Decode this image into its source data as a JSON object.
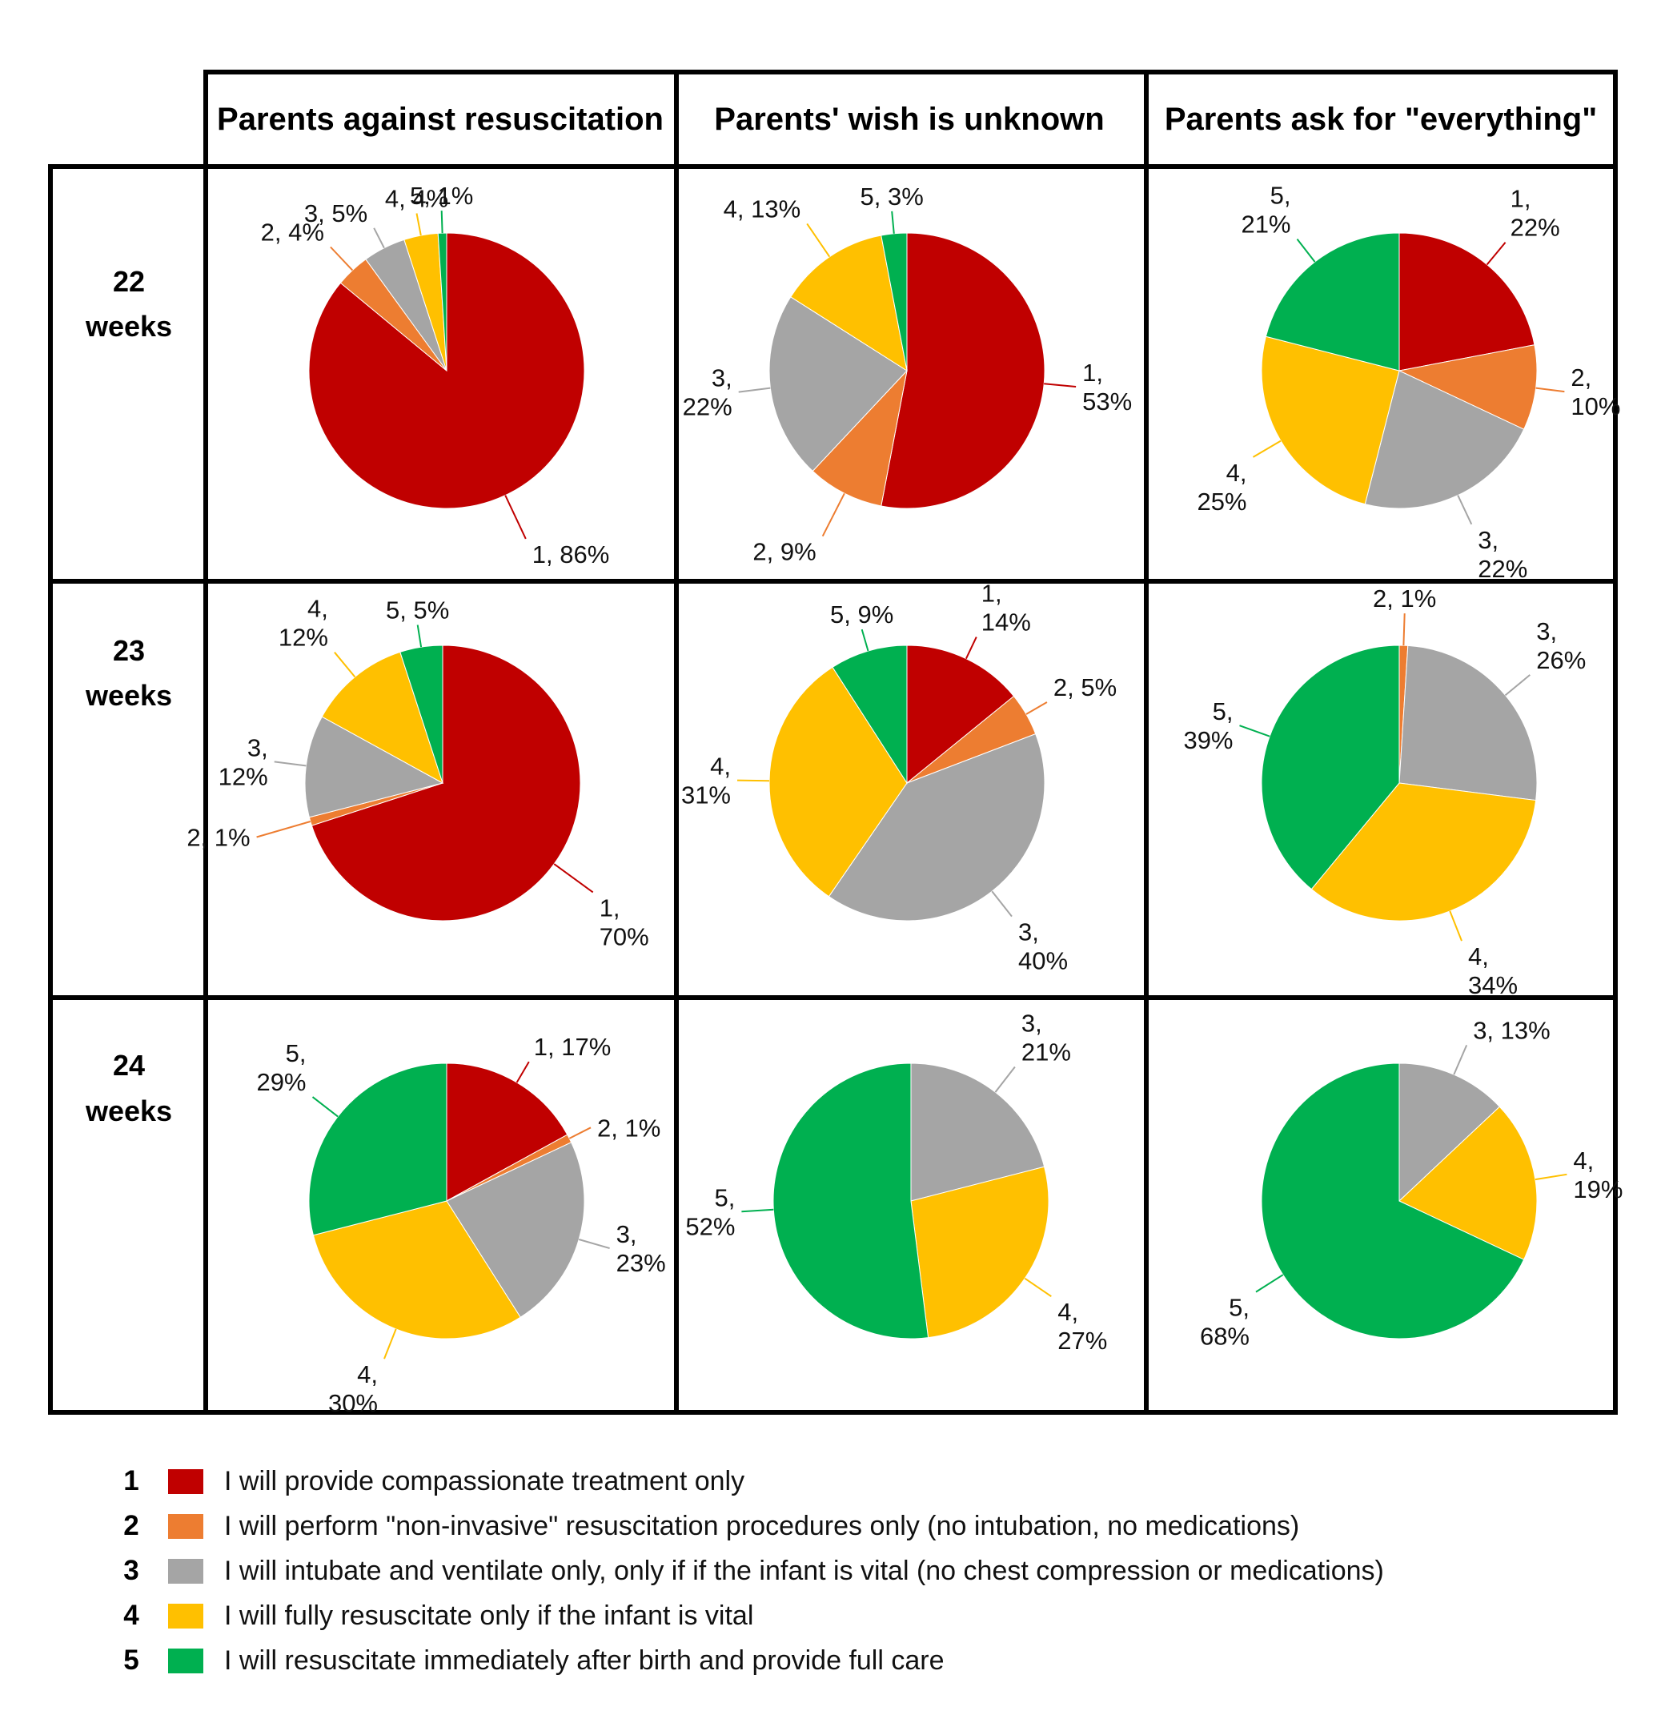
{
  "colors": {
    "1": "#c00000",
    "2": "#ed7d31",
    "3": "#a5a5a5",
    "4": "#ffc000",
    "5": "#00b050"
  },
  "column_headers": [
    "Parents against resuscitation",
    "Parents' wish is unknown",
    "Parents ask for \"everything\""
  ],
  "row_headers": [
    {
      "line1": "22",
      "line2": "weeks"
    },
    {
      "line1": "23",
      "line2": "weeks"
    },
    {
      "line1": "24",
      "line2": "weeks"
    }
  ],
  "legend": [
    {
      "num": "1",
      "text": "I will provide compassionate treatment only"
    },
    {
      "num": "2",
      "text": "I will perform \"non-invasive\" resuscitation procedures only (no intubation, no medications)"
    },
    {
      "num": "3",
      "text": "I will intubate and ventilate only, only if if the infant is vital (no chest compression or medications)"
    },
    {
      "num": "4",
      "text": "I will fully resuscitate only if the infant is vital"
    },
    {
      "num": "5",
      "text": "I will resuscitate immediately after birth and provide full care"
    }
  ],
  "chart_data": [
    {
      "type": "pie",
      "row": "22 weeks",
      "column": "Parents against resuscitation",
      "slices": [
        {
          "category": "1",
          "value": 86,
          "label": [
            "1, 86%"
          ]
        },
        {
          "category": "2",
          "value": 4,
          "label": [
            "2, 4%"
          ]
        },
        {
          "category": "3",
          "value": 5,
          "label": [
            "3, 5%"
          ]
        },
        {
          "category": "4",
          "value": 4,
          "label": [
            "4, 4%"
          ]
        },
        {
          "category": "5",
          "value": 1,
          "label": [
            "5, 1%"
          ]
        }
      ]
    },
    {
      "type": "pie",
      "row": "22 weeks",
      "column": "Parents' wish is unknown",
      "slices": [
        {
          "category": "1",
          "value": 53,
          "label": [
            "1,",
            "53%"
          ]
        },
        {
          "category": "2",
          "value": 9,
          "label": [
            "2, 9%"
          ]
        },
        {
          "category": "3",
          "value": 22,
          "label": [
            "3,",
            "22%"
          ]
        },
        {
          "category": "4",
          "value": 13,
          "label": [
            "4, 13%"
          ]
        },
        {
          "category": "5",
          "value": 3,
          "label": [
            "5, 3%"
          ]
        }
      ]
    },
    {
      "type": "pie",
      "row": "22 weeks",
      "column": "Parents ask for \"everything\"",
      "slices": [
        {
          "category": "1",
          "value": 22,
          "label": [
            "1,",
            "22%"
          ]
        },
        {
          "category": "2",
          "value": 10,
          "label": [
            "2,",
            "10%"
          ]
        },
        {
          "category": "3",
          "value": 22,
          "label": [
            "3,",
            "22%"
          ]
        },
        {
          "category": "4",
          "value": 25,
          "label": [
            "4,",
            "25%"
          ]
        },
        {
          "category": "5",
          "value": 21,
          "label": [
            "5,",
            "21%"
          ]
        }
      ]
    },
    {
      "type": "pie",
      "row": "23 weeks",
      "column": "Parents against resuscitation",
      "slices": [
        {
          "category": "1",
          "value": 70,
          "label": [
            "1,",
            "70%"
          ]
        },
        {
          "category": "2",
          "value": 1,
          "label": [
            "2, 1%"
          ]
        },
        {
          "category": "3",
          "value": 12,
          "label": [
            "3,",
            "12%"
          ]
        },
        {
          "category": "4",
          "value": 12,
          "label": [
            "4,",
            "12%"
          ]
        },
        {
          "category": "5",
          "value": 5,
          "label": [
            "5, 5%"
          ]
        }
      ]
    },
    {
      "type": "pie",
      "row": "23 weeks",
      "column": "Parents' wish is unknown",
      "slices": [
        {
          "category": "1",
          "value": 14,
          "label": [
            "1,",
            "14%"
          ]
        },
        {
          "category": "2",
          "value": 5,
          "label": [
            "2, 5%"
          ]
        },
        {
          "category": "3",
          "value": 40,
          "label": [
            "3,",
            "40%"
          ]
        },
        {
          "category": "4",
          "value": 31,
          "label": [
            "4,",
            "31%"
          ]
        },
        {
          "category": "5",
          "value": 9,
          "label": [
            "5, 9%"
          ]
        }
      ]
    },
    {
      "type": "pie",
      "row": "23 weeks",
      "column": "Parents ask for \"everything\"",
      "slices": [
        {
          "category": "2",
          "value": 1,
          "label": [
            "2, 1%"
          ]
        },
        {
          "category": "3",
          "value": 26,
          "label": [
            "3,",
            "26%"
          ]
        },
        {
          "category": "4",
          "value": 34,
          "label": [
            "4,",
            "34%"
          ]
        },
        {
          "category": "5",
          "value": 39,
          "label": [
            "5,",
            "39%"
          ]
        }
      ]
    },
    {
      "type": "pie",
      "row": "24 weeks",
      "column": "Parents against resuscitation",
      "slices": [
        {
          "category": "1",
          "value": 17,
          "label": [
            "1, 17%"
          ]
        },
        {
          "category": "2",
          "value": 1,
          "label": [
            "2, 1%"
          ]
        },
        {
          "category": "3",
          "value": 23,
          "label": [
            "3,",
            "23%"
          ]
        },
        {
          "category": "4",
          "value": 30,
          "label": [
            "4,",
            "30%"
          ]
        },
        {
          "category": "5",
          "value": 29,
          "label": [
            "5,",
            "29%"
          ]
        }
      ]
    },
    {
      "type": "pie",
      "row": "24 weeks",
      "column": "Parents' wish is unknown",
      "slices": [
        {
          "category": "3",
          "value": 21,
          "label": [
            "3,",
            "21%"
          ]
        },
        {
          "category": "4",
          "value": 27,
          "label": [
            "4,",
            "27%"
          ]
        },
        {
          "category": "5",
          "value": 52,
          "label": [
            "5,",
            "52%"
          ]
        }
      ]
    },
    {
      "type": "pie",
      "row": "24 weeks",
      "column": "Parents ask for \"everything\"",
      "slices": [
        {
          "category": "3",
          "value": 13,
          "label": [
            "3, 13%"
          ]
        },
        {
          "category": "4",
          "value": 19,
          "label": [
            "4,",
            "19%"
          ]
        },
        {
          "category": "5",
          "value": 68,
          "label": [
            "5,",
            "68%"
          ]
        }
      ]
    }
  ]
}
